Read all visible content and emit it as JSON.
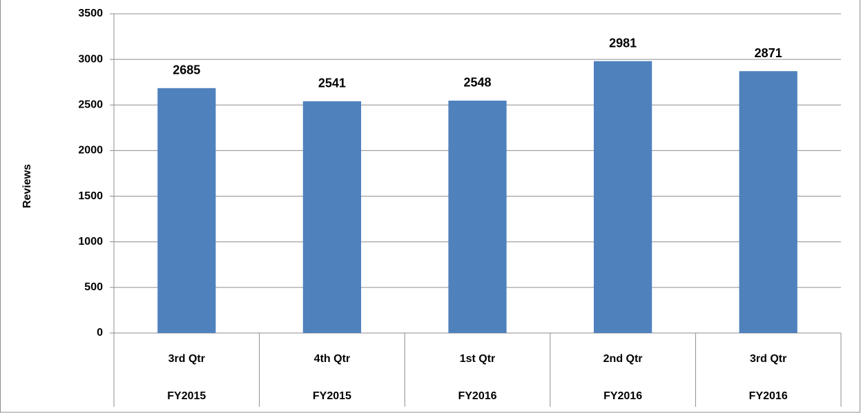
{
  "chart_data": {
    "type": "bar",
    "y_label": "Reviews",
    "categories": [
      [
        "3rd Qtr",
        "FY2015"
      ],
      [
        "4th Qtr",
        "FY2015"
      ],
      [
        "1st Qtr",
        "FY2016"
      ],
      [
        "2nd Qtr",
        "FY2016"
      ],
      [
        "3rd Qtr",
        "FY2016"
      ]
    ],
    "values": [
      2685,
      2541,
      2548,
      2981,
      2871
    ],
    "color": "#4f81bd",
    "ylim": [
      0,
      3500
    ],
    "yticks": [
      0,
      500,
      1000,
      1500,
      2000,
      2500,
      3000,
      3500
    ],
    "grid": true,
    "value_labels_shown": true
  }
}
